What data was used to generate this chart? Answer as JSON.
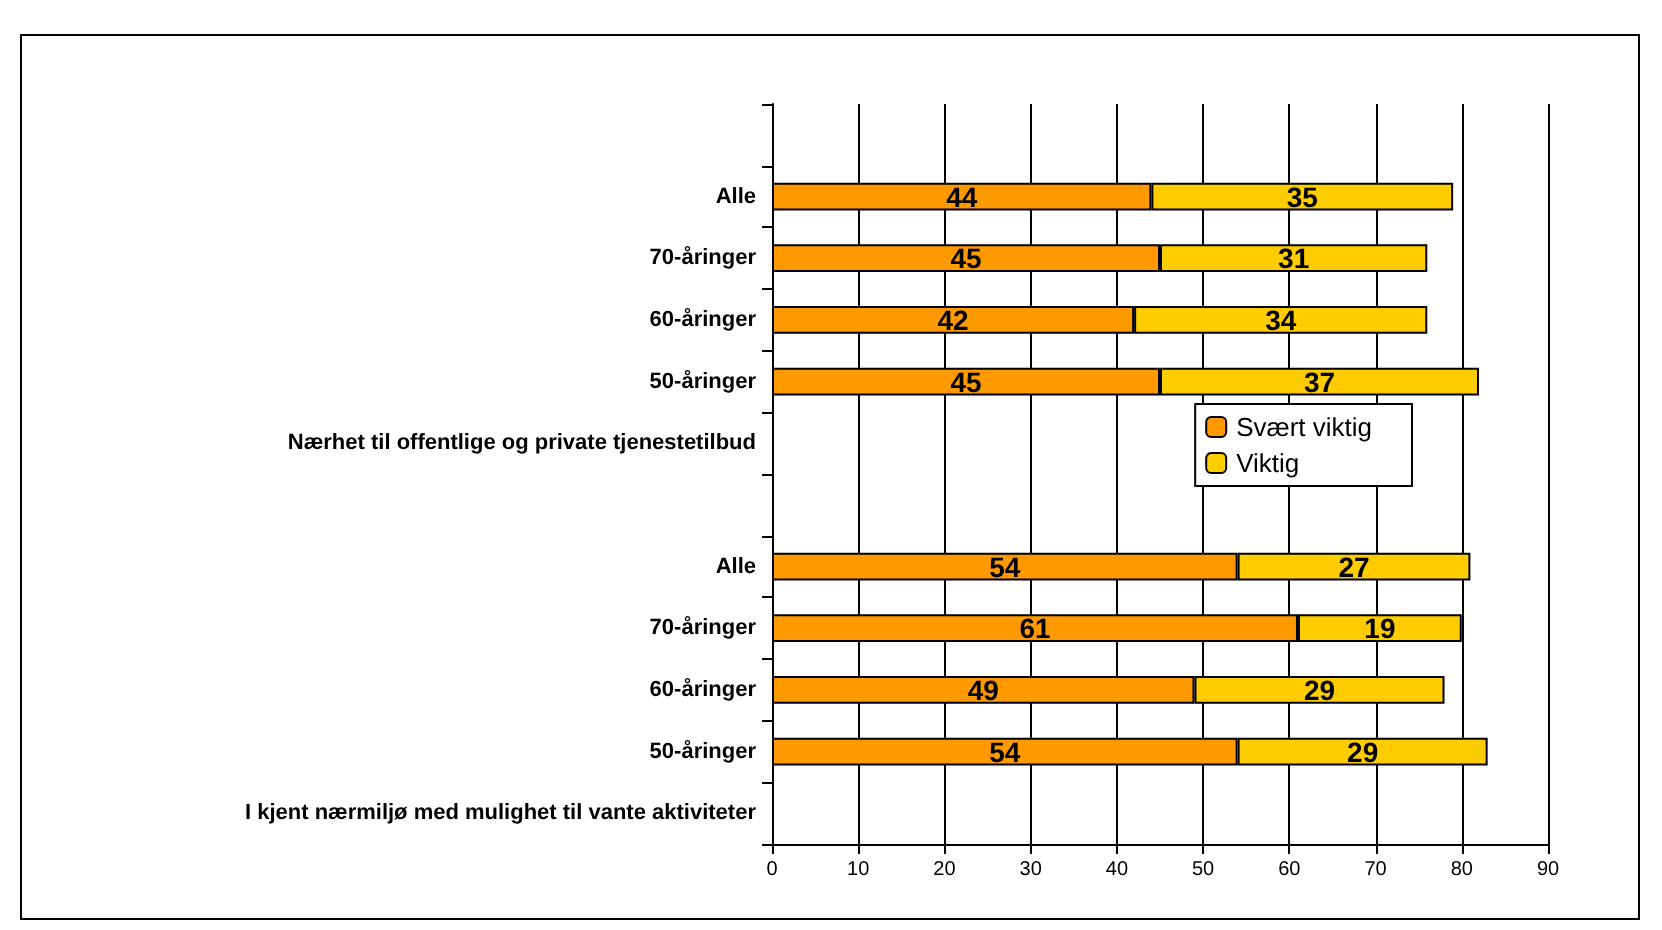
{
  "chart_data": {
    "type": "bar",
    "orientation": "horizontal",
    "stacked": true,
    "categories": [
      null,
      "Alle",
      "70-åringer",
      "60-åringer",
      "50-åringer",
      "Nærhet til offentlige og private tjenestetilbud",
      null,
      "Alle",
      "70-åringer",
      "60-åringer",
      "50-åringer",
      "I kjent nærmiljø med mulighet til vante aktiviteter"
    ],
    "series": [
      {
        "name": "Svært viktig",
        "color": "#ff9900",
        "values": [
          null,
          44,
          45,
          42,
          45,
          null,
          null,
          54,
          61,
          49,
          54,
          null
        ]
      },
      {
        "name": "Viktig",
        "color": "#ffcc00",
        "values": [
          null,
          35,
          31,
          34,
          37,
          null,
          null,
          27,
          19,
          29,
          29,
          null
        ]
      }
    ],
    "xlim": [
      0,
      90
    ],
    "xticks": [
      0,
      10,
      20,
      30,
      40,
      50,
      60,
      70,
      80,
      90
    ],
    "grid": "x",
    "legend": "right",
    "data_labels": true
  }
}
